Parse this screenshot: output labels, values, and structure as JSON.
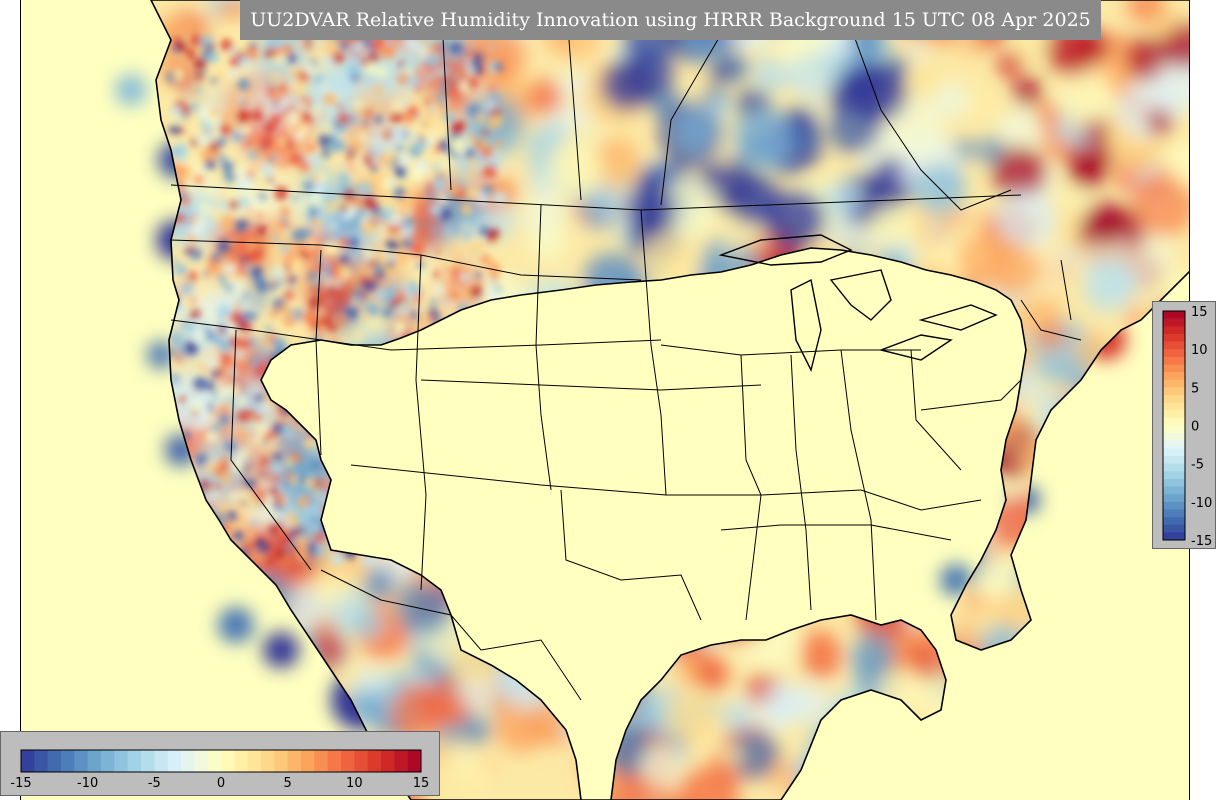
{
  "title": "UU2DVAR Relative Humidity Innovation using HRRR Background 15 UTC 08 Apr 2025",
  "colorbar": {
    "min": -15,
    "max": 15,
    "ticks": [
      "-15",
      "-10",
      "-5",
      "0",
      "5",
      "10",
      "15"
    ],
    "tick_values": [
      -15,
      -10,
      -5,
      0,
      5,
      10,
      15
    ],
    "colors": [
      "#313695",
      "#4575b4",
      "#74add1",
      "#abd9e9",
      "#e0f3f8",
      "#ffffbf",
      "#fee090",
      "#fdae61",
      "#f46d43",
      "#d73027",
      "#a50026"
    ],
    "horizontal_position": "bottom-left",
    "vertical_position": "right"
  },
  "map": {
    "background_color": "#ffffbf",
    "land_field": "mixed red-blue innovation field",
    "boundary_color": "#000000"
  }
}
